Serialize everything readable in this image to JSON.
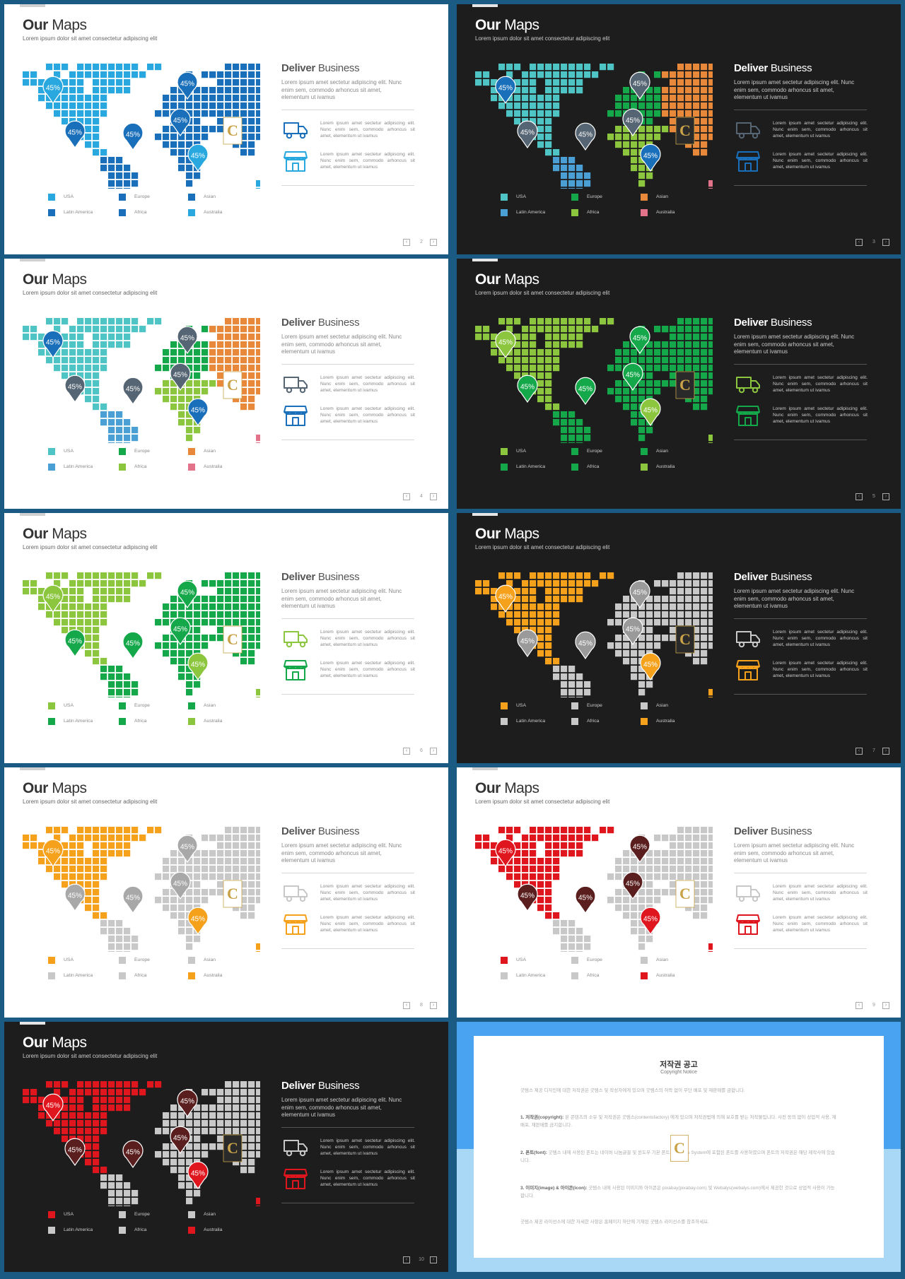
{
  "slide_text": {
    "title_bold": "Our",
    "title_rest": "Maps",
    "subtitle": "Lorem ipsum dolor sit amet consectetur adipiscing elit",
    "deliver_bold": "Deliver",
    "deliver_rest": "Business",
    "description": "Lorem ipsum amet sectetur adipiscing elit. Nunc enim sem, commodo arhoncus sit amet, elementum ut ivamus",
    "feature_text": "Lorem ipsum amet sectetur adipiscing elit. Nunc enim sem, commodo arhoncus sit amet, elementum ut ivamus",
    "pin_label": "45%",
    "logo_letter": "C",
    "legend": [
      "USA",
      "Europe",
      "Asian",
      "Latin America",
      "Africa",
      "Australia"
    ]
  },
  "slides": [
    {
      "page": "2",
      "theme": "light",
      "colors": {
        "na": "#29a8e0",
        "sa": "#1a6fba",
        "eu": "#1a6fba",
        "af": "#1a6fba",
        "as": "#1a6fba",
        "au": "#29a8e0"
      },
      "pins": {
        "na": "#29a8e0",
        "sa": "#1a6fba",
        "eu": "#1a6fba",
        "af": "#1a6fba",
        "as": "#1a6fba",
        "au": "#29a8e0"
      },
      "icon_truck": "#1a6fba",
      "icon_store": "#29a8e0"
    },
    {
      "page": "3",
      "theme": "dark",
      "colors": {
        "na": "#4ec4c4",
        "sa": "#4a9fd4",
        "eu": "#15a84a",
        "af": "#8cc63f",
        "as": "#e8883a",
        "au": "#e3738a"
      },
      "pins": {
        "na": "#1a6fba",
        "sa": "#566573",
        "eu": "#566573",
        "af": "#566573",
        "as": "#566573",
        "au": "#1a6fba"
      },
      "icon_truck": "#566573",
      "icon_store": "#1a6fba"
    },
    {
      "page": "4",
      "theme": "light",
      "colors": {
        "na": "#4ec4c4",
        "sa": "#4a9fd4",
        "eu": "#15a84a",
        "af": "#8cc63f",
        "as": "#e8883a",
        "au": "#e3738a"
      },
      "pins": {
        "na": "#1a6fba",
        "sa": "#566573",
        "eu": "#566573",
        "af": "#566573",
        "as": "#566573",
        "au": "#1a6fba"
      },
      "icon_truck": "#566573",
      "icon_store": "#1a6fba"
    },
    {
      "page": "5",
      "theme": "dark",
      "colors": {
        "na": "#8cc63f",
        "sa": "#15a84a",
        "eu": "#15a84a",
        "af": "#15a84a",
        "as": "#15a84a",
        "au": "#8cc63f"
      },
      "pins": {
        "na": "#8cc63f",
        "sa": "#15a84a",
        "eu": "#15a84a",
        "af": "#15a84a",
        "as": "#15a84a",
        "au": "#8cc63f"
      },
      "icon_truck": "#8cc63f",
      "icon_store": "#15a84a"
    },
    {
      "page": "6",
      "theme": "light",
      "colors": {
        "na": "#8cc63f",
        "sa": "#15a84a",
        "eu": "#15a84a",
        "af": "#15a84a",
        "as": "#15a84a",
        "au": "#8cc63f"
      },
      "pins": {
        "na": "#8cc63f",
        "sa": "#15a84a",
        "eu": "#15a84a",
        "af": "#15a84a",
        "as": "#15a84a",
        "au": "#8cc63f"
      },
      "icon_truck": "#8cc63f",
      "icon_store": "#15a84a"
    },
    {
      "page": "7",
      "theme": "dark",
      "colors": {
        "na": "#f5a11c",
        "sa": "#c8c8c8",
        "eu": "#c8c8c8",
        "af": "#c8c8c8",
        "as": "#c8c8c8",
        "au": "#f5a11c"
      },
      "pins": {
        "na": "#f5a11c",
        "sa": "#9a9a9a",
        "eu": "#9a9a9a",
        "af": "#9a9a9a",
        "as": "#9a9a9a",
        "au": "#f5a11c"
      },
      "icon_truck": "#c8c8c8",
      "icon_store": "#f5a11c"
    },
    {
      "page": "8",
      "theme": "light",
      "colors": {
        "na": "#f5a11c",
        "sa": "#c8c8c8",
        "eu": "#c8c8c8",
        "af": "#c8c8c8",
        "as": "#c8c8c8",
        "au": "#f5a11c"
      },
      "pins": {
        "na": "#f5a11c",
        "sa": "#a8a8a8",
        "eu": "#a8a8a8",
        "af": "#a8a8a8",
        "as": "#a8a8a8",
        "au": "#f5a11c"
      },
      "icon_truck": "#c8c8c8",
      "icon_store": "#f5a11c"
    },
    {
      "page": "9",
      "theme": "light",
      "colors": {
        "na": "#e0161e",
        "sa": "#c8c8c8",
        "eu": "#c8c8c8",
        "af": "#c8c8c8",
        "as": "#c8c8c8",
        "au": "#e0161e"
      },
      "pins": {
        "na": "#e0161e",
        "sa": "#5a1e1e",
        "eu": "#5a1e1e",
        "af": "#5a1e1e",
        "as": "#5a1e1e",
        "au": "#e0161e"
      },
      "icon_truck": "#c8c8c8",
      "icon_store": "#e0161e"
    },
    {
      "page": "10",
      "theme": "dark",
      "colors": {
        "na": "#e0161e",
        "sa": "#c8c8c8",
        "eu": "#c8c8c8",
        "af": "#c8c8c8",
        "as": "#c8c8c8",
        "au": "#e0161e"
      },
      "pins": {
        "na": "#e0161e",
        "sa": "#5a1e1e",
        "eu": "#5a1e1e",
        "af": "#5a1e1e",
        "as": "#5a1e1e",
        "au": "#e0161e"
      },
      "icon_truck": "#c8c8c8",
      "icon_store": "#e0161e"
    }
  ],
  "notice": {
    "title": "저작권 공고",
    "subtitle": "Copyright Notice",
    "intro": "굿템스 제공 디자인에 대한 저작권은 굿템스 및 작성자에게 있으며 굿템스의 허락 없이 무단 배포 및 재판매를 금합니다.",
    "p1_head": "1. 저작권(copyright):",
    "p1_body": "본 콘텐츠의 소유 및 저작권은 굿템스(contentsfactory) 에게 있으며 저작권법에 의해 보호를 받는 저작물입니다. 사전 동의 없이 상업적 사용, 재배포, 재판매를 금지합니다.",
    "p2_head": "2. 폰트(font):",
    "p2_body": "굿템스 내에 사용된 폰트는 네이버 나눔글꼴 및 윈도우 기본 폰트 Windows System에 포함된 폰트를 사용하였으며 폰트의 저작권은 해당 제작사에 있습니다.",
    "p3_head": "3. 이미지(image) & 아이콘(icon):",
    "p3_body": "굿템스 내에 사용된 이미지와 아이콘은 pixabay(pixabay.com) 및 Webalys(webalys.com)에서 제공한 것으로 상업적 사용이 가능합니다.",
    "outro": "굿템스 제공 라이선스에 대한 자세한 사항은 홈페이지 하단에 기재된 굿템스 라이선스를 참조하세요."
  }
}
